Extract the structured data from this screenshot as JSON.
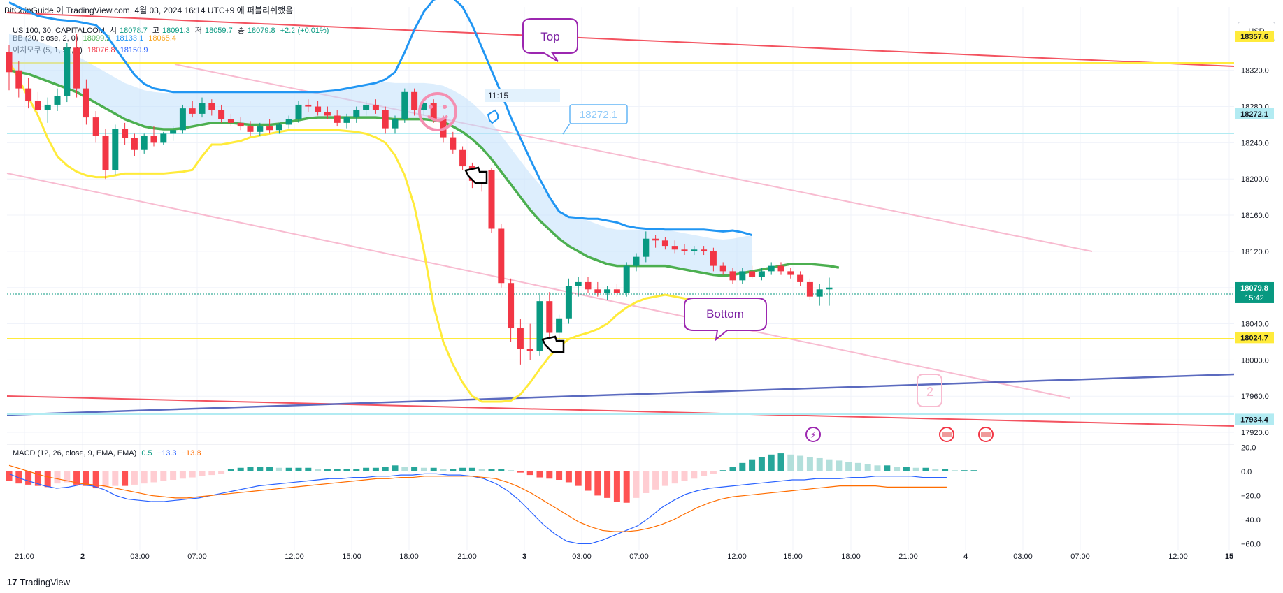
{
  "header": {
    "publisher": "BitCoinGuide 이 TradingView.com, 4월 03, 2024 16:14 UTC+9 에 퍼블리쉬했음"
  },
  "legend": {
    "symbol_line": {
      "label": "US 100, 30, CAPITALCOM",
      "open_label": "시",
      "open": "18078.7",
      "high_label": "고",
      "high": "18091.3",
      "low_label": "저",
      "low": "18059.7",
      "close_label": "종",
      "close": "18079.8",
      "change": "+2.2 (+0.01%)"
    },
    "bb_line": {
      "label": "BB (20, close, 2, 0)",
      "basis": "18099.2",
      "upper": "18133.1",
      "lower": "18065.4"
    },
    "ichimoku_line": {
      "label": "이치모쿠 (5, 1, 57, 1)",
      "v1": "18076.8",
      "v2": "18150.9"
    },
    "macd_line": {
      "label": "MACD (12, 26, close, 9, EMA, EMA)",
      "macd": "0.5",
      "signal": "−13.3",
      "hist": "−13.8"
    }
  },
  "currency_button": "USD",
  "annotations": {
    "top": "Top",
    "bottom": "Bottom",
    "time_label": "11:15",
    "price_callout": "18272.1",
    "wave_label": "2"
  },
  "price_badges": [
    {
      "value": "18357.6",
      "color": "#ffeb3b",
      "text_color": "#131722"
    },
    {
      "value": "18272.1",
      "color": "#b2ebf2",
      "text_color": "#131722"
    },
    {
      "value": "18079.8",
      "sub": "15:42",
      "color": "#089981",
      "text_color": "#ffffff"
    },
    {
      "value": "18024.7",
      "color": "#ffeb3b",
      "text_color": "#131722"
    },
    {
      "value": "17934.4",
      "color": "#b2ebf2",
      "text_color": "#131722"
    }
  ],
  "footer": {
    "brand": "TradingView"
  },
  "colors": {
    "up": "#089981",
    "down": "#f23645",
    "bb_basis": "#4caf50",
    "bb_lower": "#ffeb3b",
    "bb_upper": "#2196f3",
    "cloud": "#bbdefb",
    "macd": "#2962ff",
    "signal": "#ff6d00",
    "hist_pos_strong": "#26a69a",
    "hist_pos_weak": "#b2dfdb",
    "hist_neg_strong": "#ff5252",
    "hist_neg_weak": "#ffcdd2"
  },
  "chart_data": [
    {
      "type": "candlestick",
      "series_name": "US 100, 30, CAPITALCOM",
      "ylim": [
        17910,
        18390
      ],
      "y_ticks": [
        17920,
        17960,
        18000,
        18040,
        18080,
        18120,
        18160,
        18200,
        18240,
        18280,
        18320
      ],
      "x_ticks": [
        "21:00",
        "2",
        "03:00",
        "07:00",
        "12:00",
        "15:00",
        "18:00",
        "21:00",
        "3",
        "03:00",
        "07:00",
        "12:00",
        "15:00",
        "18:00",
        "21:00",
        "4",
        "03:00",
        "07:00",
        "12:00",
        "15"
      ],
      "candles": [
        {
          "o": 18340,
          "h": 18348,
          "l": 18298,
          "c": 18318
        },
        {
          "o": 18320,
          "h": 18330,
          "l": 18290,
          "c": 18300
        },
        {
          "o": 18300,
          "h": 18312,
          "l": 18278,
          "c": 18286
        },
        {
          "o": 18286,
          "h": 18296,
          "l": 18268,
          "c": 18276
        },
        {
          "o": 18276,
          "h": 18290,
          "l": 18262,
          "c": 18282
        },
        {
          "o": 18282,
          "h": 18300,
          "l": 18275,
          "c": 18292
        },
        {
          "o": 18292,
          "h": 18350,
          "l": 18285,
          "c": 18345
        },
        {
          "o": 18345,
          "h": 18360,
          "l": 18290,
          "c": 18300
        },
        {
          "o": 18300,
          "h": 18310,
          "l": 18260,
          "c": 18268
        },
        {
          "o": 18268,
          "h": 18275,
          "l": 18240,
          "c": 18248
        },
        {
          "o": 18248,
          "h": 18255,
          "l": 18200,
          "c": 18210
        },
        {
          "o": 18210,
          "h": 18260,
          "l": 18205,
          "c": 18255
        },
        {
          "o": 18255,
          "h": 18262,
          "l": 18238,
          "c": 18245
        },
        {
          "o": 18245,
          "h": 18250,
          "l": 18225,
          "c": 18232
        },
        {
          "o": 18232,
          "h": 18250,
          "l": 18228,
          "c": 18248
        },
        {
          "o": 18248,
          "h": 18258,
          "l": 18236,
          "c": 18240
        },
        {
          "o": 18240,
          "h": 18252,
          "l": 18238,
          "c": 18250
        },
        {
          "o": 18250,
          "h": 18258,
          "l": 18242,
          "c": 18254
        },
        {
          "o": 18254,
          "h": 18282,
          "l": 18250,
          "c": 18278
        },
        {
          "o": 18278,
          "h": 18286,
          "l": 18268,
          "c": 18272
        },
        {
          "o": 18272,
          "h": 18290,
          "l": 18268,
          "c": 18284
        },
        {
          "o": 18284,
          "h": 18288,
          "l": 18270,
          "c": 18276
        },
        {
          "o": 18276,
          "h": 18282,
          "l": 18262,
          "c": 18266
        },
        {
          "o": 18266,
          "h": 18272,
          "l": 18258,
          "c": 18262
        },
        {
          "o": 18262,
          "h": 18268,
          "l": 18254,
          "c": 18258
        },
        {
          "o": 18258,
          "h": 18264,
          "l": 18248,
          "c": 18252
        },
        {
          "o": 18252,
          "h": 18262,
          "l": 18248,
          "c": 18258
        },
        {
          "o": 18258,
          "h": 18266,
          "l": 18250,
          "c": 18254
        },
        {
          "o": 18254,
          "h": 18262,
          "l": 18250,
          "c": 18260
        },
        {
          "o": 18260,
          "h": 18270,
          "l": 18256,
          "c": 18266
        },
        {
          "o": 18266,
          "h": 18286,
          "l": 18262,
          "c": 18282
        },
        {
          "o": 18282,
          "h": 18288,
          "l": 18274,
          "c": 18280
        },
        {
          "o": 18280,
          "h": 18286,
          "l": 18270,
          "c": 18274
        },
        {
          "o": 18274,
          "h": 18280,
          "l": 18266,
          "c": 18270
        },
        {
          "o": 18270,
          "h": 18276,
          "l": 18258,
          "c": 18262
        },
        {
          "o": 18262,
          "h": 18272,
          "l": 18256,
          "c": 18268
        },
        {
          "o": 18268,
          "h": 18280,
          "l": 18262,
          "c": 18276
        },
        {
          "o": 18276,
          "h": 18286,
          "l": 18270,
          "c": 18282
        },
        {
          "o": 18282,
          "h": 18288,
          "l": 18272,
          "c": 18276
        },
        {
          "o": 18276,
          "h": 18280,
          "l": 18250,
          "c": 18256
        },
        {
          "o": 18256,
          "h": 18270,
          "l": 18250,
          "c": 18266
        },
        {
          "o": 18266,
          "h": 18300,
          "l": 18262,
          "c": 18296
        },
        {
          "o": 18296,
          "h": 18300,
          "l": 18270,
          "c": 18276
        },
        {
          "o": 18276,
          "h": 18290,
          "l": 18270,
          "c": 18284
        },
        {
          "o": 18284,
          "h": 18288,
          "l": 18262,
          "c": 18266
        },
        {
          "o": 18266,
          "h": 18270,
          "l": 18240,
          "c": 18246
        },
        {
          "o": 18246,
          "h": 18252,
          "l": 18228,
          "c": 18232
        },
        {
          "o": 18232,
          "h": 18236,
          "l": 18210,
          "c": 18214
        },
        {
          "o": 18214,
          "h": 18218,
          "l": 18190,
          "c": 18198
        },
        {
          "o": 18198,
          "h": 18206,
          "l": 18186,
          "c": 18196
        },
        {
          "o": 18210,
          "h": 18212,
          "l": 18140,
          "c": 18145
        },
        {
          "o": 18145,
          "h": 18150,
          "l": 18080,
          "c": 18085
        },
        {
          "o": 18085,
          "h": 18090,
          "l": 18020,
          "c": 18035
        },
        {
          "o": 18035,
          "h": 18045,
          "l": 17995,
          "c": 18012
        },
        {
          "o": 18012,
          "h": 18040,
          "l": 18000,
          "c": 18010
        },
        {
          "o": 18010,
          "h": 18072,
          "l": 18005,
          "c": 18065
        },
        {
          "o": 18065,
          "h": 18075,
          "l": 18025,
          "c": 18030
        },
        {
          "o": 18030,
          "h": 18050,
          "l": 18020,
          "c": 18046
        },
        {
          "o": 18046,
          "h": 18090,
          "l": 18040,
          "c": 18082
        },
        {
          "o": 18082,
          "h": 18092,
          "l": 18070,
          "c": 18086
        },
        {
          "o": 18086,
          "h": 18092,
          "l": 18074,
          "c": 18078
        },
        {
          "o": 18078,
          "h": 18086,
          "l": 18070,
          "c": 18074
        },
        {
          "o": 18074,
          "h": 18082,
          "l": 18066,
          "c": 18078
        },
        {
          "o": 18078,
          "h": 18084,
          "l": 18070,
          "c": 18074
        },
        {
          "o": 18074,
          "h": 18108,
          "l": 18070,
          "c": 18104
        },
        {
          "o": 18104,
          "h": 18118,
          "l": 18098,
          "c": 18114
        },
        {
          "o": 18114,
          "h": 18142,
          "l": 18108,
          "c": 18134
        },
        {
          "o": 18134,
          "h": 18138,
          "l": 18124,
          "c": 18132
        },
        {
          "o": 18132,
          "h": 18136,
          "l": 18122,
          "c": 18126
        },
        {
          "o": 18126,
          "h": 18132,
          "l": 18118,
          "c": 18122
        },
        {
          "o": 18122,
          "h": 18128,
          "l": 18116,
          "c": 18120
        },
        {
          "o": 18120,
          "h": 18126,
          "l": 18116,
          "c": 18122
        },
        {
          "o": 18122,
          "h": 18126,
          "l": 18116,
          "c": 18120
        },
        {
          "o": 18120,
          "h": 18124,
          "l": 18098,
          "c": 18104
        },
        {
          "o": 18104,
          "h": 18108,
          "l": 18094,
          "c": 18098
        },
        {
          "o": 18098,
          "h": 18102,
          "l": 18084,
          "c": 18088
        },
        {
          "o": 18088,
          "h": 18102,
          "l": 18084,
          "c": 18098
        },
        {
          "o": 18098,
          "h": 18104,
          "l": 18090,
          "c": 18092
        },
        {
          "o": 18092,
          "h": 18102,
          "l": 18088,
          "c": 18098
        },
        {
          "o": 18098,
          "h": 18108,
          "l": 18094,
          "c": 18104
        },
        {
          "o": 18104,
          "h": 18108,
          "l": 18094,
          "c": 18098
        },
        {
          "o": 18098,
          "h": 18102,
          "l": 18090,
          "c": 18094
        },
        {
          "o": 18094,
          "h": 18098,
          "l": 18082,
          "c": 18086
        },
        {
          "o": 18086,
          "h": 18090,
          "l": 18066,
          "c": 18070
        },
        {
          "o": 18070,
          "h": 18084,
          "l": 18060,
          "c": 18078
        },
        {
          "o": 18078,
          "h": 18091,
          "l": 18060,
          "c": 18080
        }
      ],
      "bb_basis": [
        18320,
        18318,
        18316,
        18312,
        18308,
        18304,
        18300,
        18296,
        18290,
        18284,
        18278,
        18272,
        18266,
        18262,
        18258,
        18256,
        18255,
        18255,
        18256,
        18258,
        18260,
        18262,
        18262,
        18262,
        18261,
        18260,
        18260,
        18260,
        18261,
        18263,
        18265,
        18267,
        18268,
        18268,
        18268,
        18268,
        18268,
        18268,
        18268,
        18267,
        18266,
        18266,
        18266,
        18266,
        18265,
        18263,
        18258,
        18252,
        18244,
        18234,
        18222,
        18208,
        18194,
        18180,
        18166,
        18154,
        18144,
        18134,
        18126,
        18120,
        18114,
        18110,
        18106,
        18104,
        18104,
        18104,
        18104,
        18104,
        18104,
        18102,
        18100,
        18098,
        18096,
        18094,
        18093,
        18094,
        18096,
        18098,
        18100,
        18102,
        18104,
        18106,
        18106,
        18106,
        18105,
        18104,
        18102
      ],
      "bb_upper": [
        18395,
        18390,
        18385,
        18380,
        18378,
        18376,
        18375,
        18374,
        18372,
        18370,
        18360,
        18345,
        18330,
        18315,
        18305,
        18300,
        18298,
        18296,
        18296,
        18296,
        18296,
        18296,
        18296,
        18296,
        18296,
        18296,
        18296,
        18296,
        18296,
        18296,
        18296,
        18296,
        18296,
        18297,
        18298,
        18300,
        18302,
        18304,
        18306,
        18310,
        18318,
        18340,
        18365,
        18385,
        18398,
        18402,
        18400,
        18390,
        18370,
        18345,
        18320,
        18295,
        18268,
        18245,
        18222,
        18200,
        18180,
        18164,
        18158,
        18157,
        18156,
        18156,
        18154,
        18152,
        18148,
        18146,
        18145,
        18145,
        18144,
        18144,
        18144,
        18144,
        18144,
        18143,
        18142,
        18143,
        18141,
        18138
      ],
      "bb_lower": [
        18330,
        18310,
        18290,
        18270,
        18245,
        18225,
        18215,
        18208,
        18204,
        18202,
        18202,
        18204,
        18206,
        18206,
        18206,
        18206,
        18206,
        18207,
        18208,
        18210,
        18225,
        18238,
        18238,
        18240,
        18242,
        18246,
        18248,
        18250,
        18252,
        18254,
        18254,
        18254,
        18254,
        18254,
        18254,
        18253,
        18252,
        18250,
        18246,
        18240,
        18226,
        18204,
        18170,
        18120,
        18060,
        18020,
        17995,
        17975,
        17960,
        17954,
        17954,
        17954,
        17955,
        17962,
        17975,
        17990,
        18004,
        18015,
        18023,
        18027,
        18030,
        18034,
        18040,
        18050,
        18058,
        18064,
        18068,
        18070,
        18072,
        18070,
        18068,
        18066,
        18066
      ]
    },
    {
      "type": "bar+line",
      "series_name": "MACD (12, 26, close, 9, EMA, EMA)",
      "ylim": [
        -65,
        22
      ],
      "y_ticks": [
        20.0,
        0.0,
        -20.0,
        -40.0,
        -60.0
      ],
      "histogram": [
        -8,
        -10,
        -11,
        -12,
        -13,
        -10,
        -9,
        -11,
        -12,
        -14,
        -13,
        -12,
        -12,
        -11,
        -10,
        -9,
        -8,
        -7,
        -6,
        -5,
        -4,
        -3,
        -2,
        2,
        3,
        4,
        4,
        4,
        3,
        3,
        3,
        3,
        2,
        2,
        2,
        2,
        2,
        3,
        3,
        4,
        5,
        4,
        4,
        3,
        3,
        2,
        2,
        3,
        3,
        2,
        2,
        2,
        1,
        -1,
        -3,
        -5,
        -6,
        -7,
        -9,
        -12,
        -16,
        -20,
        -22,
        -25,
        -26,
        -22,
        -18,
        -15,
        -12,
        -10,
        -8,
        -6,
        -4,
        -2,
        1,
        4,
        7,
        10,
        12,
        14,
        15,
        14,
        13,
        12,
        11,
        10,
        9,
        8,
        7,
        6,
        5,
        5,
        4,
        4,
        3,
        3,
        2,
        2,
        1,
        1,
        1
      ],
      "macd": [
        -2,
        -6,
        -9,
        -12,
        -14,
        -13,
        -11,
        -12,
        -15,
        -20,
        -23,
        -24,
        -25,
        -25,
        -24,
        -23,
        -22,
        -20,
        -18,
        -16,
        -14,
        -12,
        -11,
        -10,
        -9,
        -8,
        -7,
        -6,
        -6,
        -5,
        -5,
        -4,
        -4,
        -3,
        -3,
        -2,
        -2,
        -3,
        -3,
        -4,
        -6,
        -10,
        -16,
        -24,
        -34,
        -44,
        -52,
        -58,
        -60,
        -60,
        -57,
        -53,
        -49,
        -45,
        -38,
        -30,
        -24,
        -19,
        -16,
        -14,
        -13,
        -12,
        -11,
        -10,
        -9,
        -8,
        -7,
        -7,
        -6,
        -6,
        -6,
        -5,
        -5,
        -4,
        -4,
        -4,
        -4,
        -5,
        -5,
        -5
      ],
      "signal": [
        5,
        2,
        -1,
        -4,
        -6,
        -8,
        -10,
        -11,
        -12,
        -14,
        -16,
        -18,
        -20,
        -21,
        -22,
        -22,
        -21,
        -20,
        -19,
        -18,
        -17,
        -16,
        -15,
        -14,
        -13,
        -12,
        -11,
        -10,
        -9,
        -8,
        -7,
        -6,
        -6,
        -5,
        -5,
        -4,
        -4,
        -4,
        -4,
        -4,
        -5,
        -6,
        -9,
        -13,
        -18,
        -24,
        -30,
        -36,
        -42,
        -46,
        -49,
        -50,
        -50,
        -49,
        -47,
        -44,
        -40,
        -35,
        -30,
        -26,
        -23,
        -21,
        -20,
        -19,
        -18,
        -17,
        -16,
        -15,
        -14,
        -13,
        -12,
        -12,
        -12,
        -12,
        -13,
        -13,
        -13,
        -13,
        -13,
        -13
      ]
    }
  ]
}
